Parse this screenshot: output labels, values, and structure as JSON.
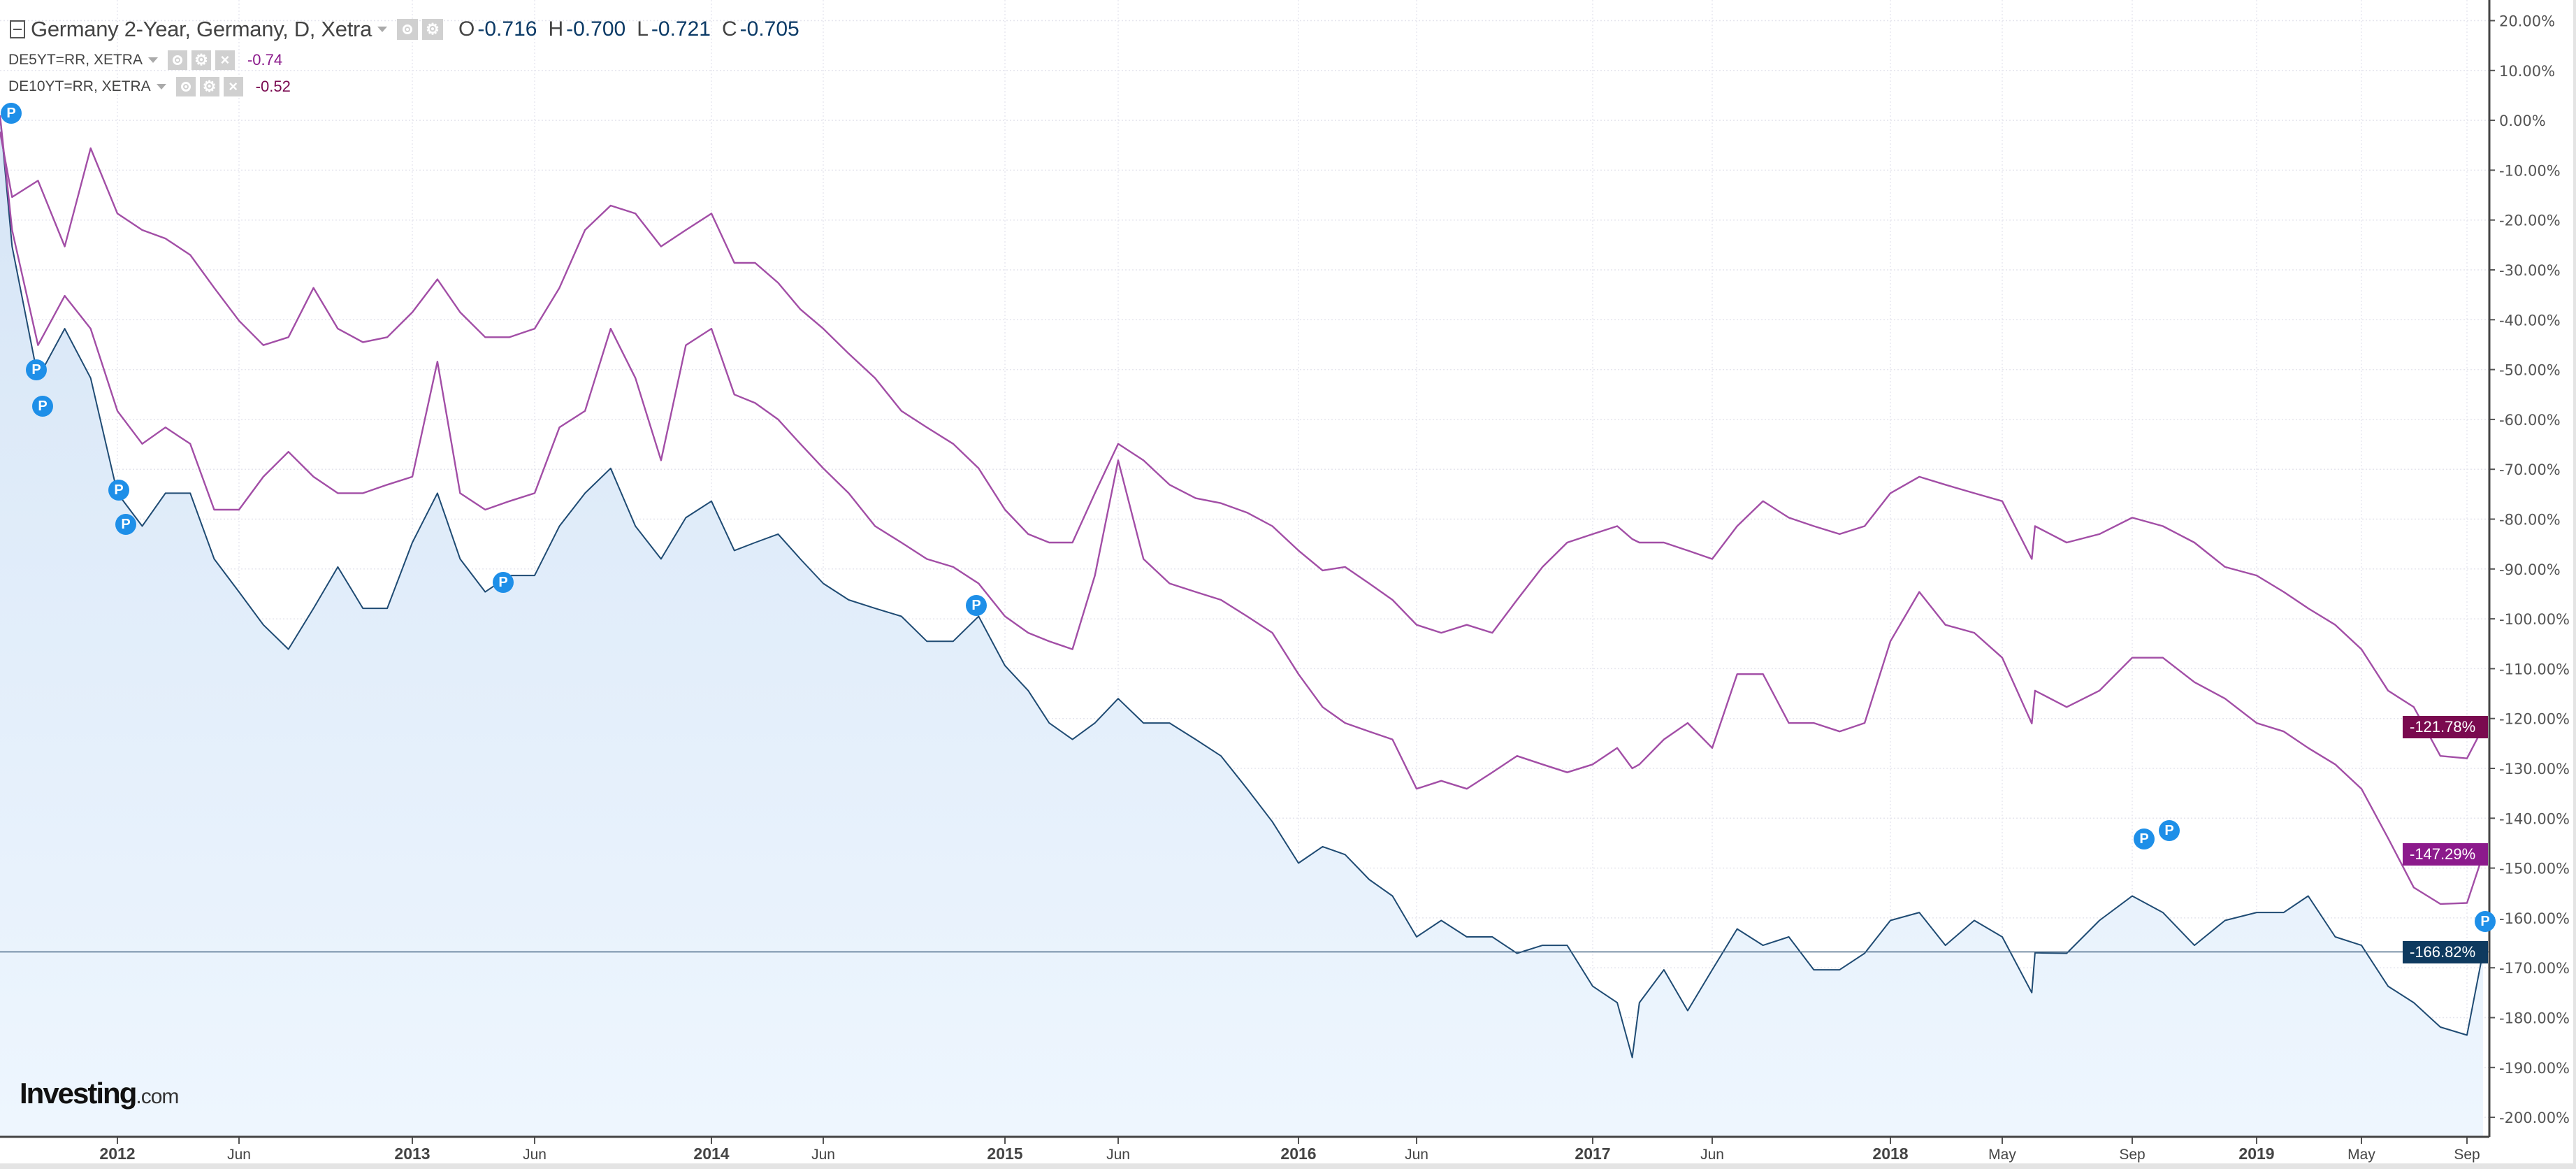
{
  "header": {
    "title": "Germany 2-Year, Germany, D, Xetra",
    "ohlc": [
      {
        "label": "O",
        "value": "-0.716"
      },
      {
        "label": "H",
        "value": "-0.700"
      },
      {
        "label": "L",
        "value": "-0.721"
      },
      {
        "label": "C",
        "value": "-0.705"
      }
    ],
    "overlays": [
      {
        "symbol": "DE5YT=RR, XETRA",
        "value": "-0.74",
        "color": "#8b1a8b"
      },
      {
        "symbol": "DE10YT=RR, XETRA",
        "value": "-0.52",
        "color": "#7a0a50"
      }
    ],
    "close_icon": "×",
    "pin_label": "P"
  },
  "logo": {
    "main": "Investing",
    "domain": ".com"
  },
  "chart_data": {
    "type": "line",
    "y_unit": "%",
    "ylim": [
      -200,
      20
    ],
    "y_ticks": [
      "20.00%",
      "10.00%",
      "0.00%",
      "-10.00%",
      "-20.00%",
      "-30.00%",
      "-40.00%",
      "-50.00%",
      "-60.00%",
      "-70.00%",
      "-80.00%",
      "-90.00%",
      "-100.00%",
      "-110.00%",
      "-120.00%",
      "-130.00%",
      "-140.00%",
      "-150.00%",
      "-160.00%",
      "-170.00%",
      "-180.00%",
      "-190.00%",
      "-200.00%"
    ],
    "x_ticks": [
      {
        "date": "2012-01-01",
        "label": "2012",
        "major": true
      },
      {
        "date": "2012-06-01",
        "label": "Jun",
        "major": false
      },
      {
        "date": "2013-01-01",
        "label": "2013",
        "major": true
      },
      {
        "date": "2013-06-01",
        "label": "Jun",
        "major": false
      },
      {
        "date": "2014-01-01",
        "label": "2014",
        "major": true
      },
      {
        "date": "2014-06-01",
        "label": "Jun",
        "major": false
      },
      {
        "date": "2015-01-01",
        "label": "2015",
        "major": true
      },
      {
        "date": "2015-06-01",
        "label": "Jun",
        "major": false
      },
      {
        "date": "2016-01-01",
        "label": "2016",
        "major": true
      },
      {
        "date": "2016-06-01",
        "label": "Jun",
        "major": false
      },
      {
        "date": "2017-01-01",
        "label": "2017",
        "major": true
      },
      {
        "date": "2017-06-01",
        "label": "Jun",
        "major": false
      },
      {
        "date": "2018-01-01",
        "label": "2018",
        "major": true
      },
      {
        "date": "2018-05-01",
        "label": "May",
        "major": false
      },
      {
        "date": "2018-09-01",
        "label": "Sep",
        "major": false
      },
      {
        "date": "2019-01-01",
        "label": "2019",
        "major": true
      },
      {
        "date": "2019-05-01",
        "label": "May",
        "major": false
      },
      {
        "date": "2019-09-01",
        "label": "Sep",
        "major": false
      }
    ],
    "grid": true,
    "dates": [
      "2011-08-18",
      "2011-09-01",
      "2011-10-01",
      "2011-11-01",
      "2011-12-01",
      "2012-01-01",
      "2012-02-01",
      "2012-03-01",
      "2012-04-01",
      "2012-05-01",
      "2012-06-01",
      "2012-07-01",
      "2012-08-01",
      "2012-09-01",
      "2012-10-01",
      "2012-11-01",
      "2012-12-01",
      "2013-01-01",
      "2013-02-01",
      "2013-03-01",
      "2013-04-01",
      "2013-05-01",
      "2013-06-01",
      "2013-07-01",
      "2013-08-01",
      "2013-09-01",
      "2013-10-01",
      "2013-11-01",
      "2013-12-01",
      "2014-01-01",
      "2014-02-01",
      "2014-03-01",
      "2014-04-01",
      "2014-05-01",
      "2014-06-01",
      "2014-07-01",
      "2014-08-01",
      "2014-09-01",
      "2014-10-01",
      "2014-11-01",
      "2014-12-01",
      "2015-01-01",
      "2015-02-01",
      "2015-03-01",
      "2015-04-01",
      "2015-05-01",
      "2015-06-01",
      "2015-07-01",
      "2015-08-01",
      "2015-09-01",
      "2015-10-01",
      "2015-11-01",
      "2015-12-01",
      "2016-01-01",
      "2016-02-01",
      "2016-03-01",
      "2016-04-01",
      "2016-05-01",
      "2016-06-01",
      "2016-07-01",
      "2016-08-01",
      "2016-09-01",
      "2016-10-01",
      "2016-11-01",
      "2016-12-01",
      "2017-01-01",
      "2017-02-01",
      "2017-02-20",
      "2017-03-01",
      "2017-04-01",
      "2017-05-01",
      "2017-06-01",
      "2017-07-01",
      "2017-08-01",
      "2017-09-01",
      "2017-10-01",
      "2017-11-01",
      "2017-12-01",
      "2018-01-01",
      "2018-02-01",
      "2018-03-01",
      "2018-04-01",
      "2018-05-01",
      "2018-05-29",
      "2018-06-01",
      "2018-07-01",
      "2018-08-01",
      "2018-09-01",
      "2018-10-01",
      "2018-11-01",
      "2018-12-01",
      "2019-01-01",
      "2019-02-01",
      "2019-03-01",
      "2019-04-01",
      "2019-05-01",
      "2019-06-01",
      "2019-07-01",
      "2019-08-01",
      "2019-09-01",
      "2019-09-20"
    ],
    "series": [
      {
        "name": "Germany 2-Year, Germany, D, Xetra",
        "color": "#1f4b73",
        "fill": "#dce9f7",
        "last_label": "-166.82%",
        "last_value": -166.82,
        "tag_color": "#0e3a5f",
        "values": [
          1.0,
          -25.3,
          -51.7,
          -41.8,
          -51.7,
          -74.8,
          -81.4,
          -74.8,
          -74.8,
          -88,
          -94.6,
          -101.2,
          -106.1,
          -97.9,
          -89.6,
          -97.9,
          -97.9,
          -84.7,
          -74.8,
          -88,
          -94.6,
          -91.3,
          -91.3,
          -81.4,
          -74.8,
          -69.8,
          -81.4,
          -88,
          -79.7,
          -76.4,
          -86.3,
          -84.7,
          -83,
          -88,
          -92.9,
          -96.2,
          -97.9,
          -99.5,
          -104.5,
          -104.5,
          -99.5,
          -109.4,
          -114.4,
          -120.9,
          -124.2,
          -120.9,
          -116,
          -120.9,
          -120.9,
          -124.2,
          -127.5,
          -134.1,
          -140.7,
          -149,
          -145.7,
          -147.3,
          -152.3,
          -155.6,
          -163.8,
          -160.5,
          -163.8,
          -163.8,
          -167.1,
          -165.5,
          -165.5,
          -173.7,
          -177,
          -188,
          -177,
          -170.4,
          -178.6,
          -170.4,
          -162.2,
          -165.5,
          -163.8,
          -170.4,
          -170.4,
          -167.1,
          -160.5,
          -158.9,
          -165.5,
          -160.5,
          -163.8,
          -175,
          -167,
          -167.1,
          -160.5,
          -155.6,
          -158.9,
          -165.5,
          -160.5,
          -158.9,
          -158.9,
          -155.6,
          -163.8,
          -165.5,
          -173.7,
          -177,
          -181.9,
          -183.5,
          -166.82
        ]
      },
      {
        "name": "DE5YT=RR, XETRA",
        "color": "#a24ea6",
        "last_label": "-147.29%",
        "last_value": -147.29,
        "tag_color": "#8c1a8c",
        "values": [
          1.0,
          -22,
          -45.1,
          -35.2,
          -41.8,
          -58.3,
          -64.9,
          -61.6,
          -64.9,
          -78.1,
          -78.1,
          -71.5,
          -66.5,
          -71.5,
          -74.8,
          -74.8,
          -73.1,
          -71.5,
          -48.4,
          -74.8,
          -78.1,
          -76.4,
          -74.8,
          -61.6,
          -58.3,
          -41.8,
          -51.7,
          -68.2,
          -45.1,
          -41.8,
          -55,
          -56.7,
          -60,
          -64.9,
          -69.8,
          -74.8,
          -81.4,
          -84.7,
          -88,
          -89.6,
          -92.9,
          -99.5,
          -102.8,
          -104.5,
          -106.1,
          -91.3,
          -68.2,
          -88,
          -92.9,
          -94.6,
          -96.2,
          -99.5,
          -102.8,
          -111.1,
          -117.7,
          -120.9,
          -122.6,
          -124.2,
          -134.1,
          -132.5,
          -134.1,
          -130.8,
          -127.5,
          -129.2,
          -130.8,
          -129.2,
          -125.9,
          -130,
          -129.2,
          -124.2,
          -120.9,
          -125.9,
          -111.1,
          -111.1,
          -120.9,
          -120.9,
          -122.6,
          -120.9,
          -104.5,
          -94.6,
          -101.2,
          -102.8,
          -107.8,
          -121,
          -114.4,
          -117.7,
          -114.4,
          -107.8,
          -107.8,
          -112.7,
          -116,
          -120.9,
          -122.6,
          -125.9,
          -129.2,
          -134.1,
          -144,
          -153.9,
          -157.2,
          -157,
          -147.29
        ]
      },
      {
        "name": "DE10YT=RR, XETRA",
        "color": "#a24ea6",
        "last_label": "-121.78%",
        "last_value": -121.78,
        "tag_color": "#7a0a4f",
        "values": [
          -2.3,
          -15.4,
          -12.1,
          -25.3,
          -5.6,
          -18.7,
          -22,
          -23.7,
          -27,
          -33.6,
          -40.2,
          -45.1,
          -43.5,
          -33.6,
          -41.8,
          -44.5,
          -43.5,
          -38.5,
          -31.9,
          -38.5,
          -43.5,
          -43.5,
          -41.8,
          -33.6,
          -22,
          -17.1,
          -18.7,
          -25.3,
          -22,
          -18.7,
          -28.6,
          -28.6,
          -32.6,
          -37.9,
          -41.8,
          -46.8,
          -51.7,
          -58.3,
          -61.6,
          -64.9,
          -69.8,
          -78.1,
          -83,
          -84.7,
          -84.7,
          -74.8,
          -64.9,
          -68.2,
          -73.1,
          -75.8,
          -76.8,
          -78.7,
          -81.4,
          -86.3,
          -90.3,
          -89.6,
          -92.9,
          -96.2,
          -101.2,
          -102.8,
          -101.2,
          -102.8,
          -96.2,
          -89.6,
          -84.7,
          -83,
          -81.4,
          -84,
          -84.7,
          -84.7,
          -86.3,
          -88,
          -81.4,
          -76.4,
          -79.7,
          -81.4,
          -83,
          -81.4,
          -74.8,
          -71.5,
          -73.1,
          -74.8,
          -76.4,
          -88,
          -81.4,
          -84.7,
          -83,
          -79.7,
          -81.4,
          -84.7,
          -89.6,
          -91.3,
          -94.6,
          -97.9,
          -101.2,
          -106.1,
          -114.4,
          -117.7,
          -127.5,
          -128,
          -121.78
        ]
      }
    ]
  }
}
